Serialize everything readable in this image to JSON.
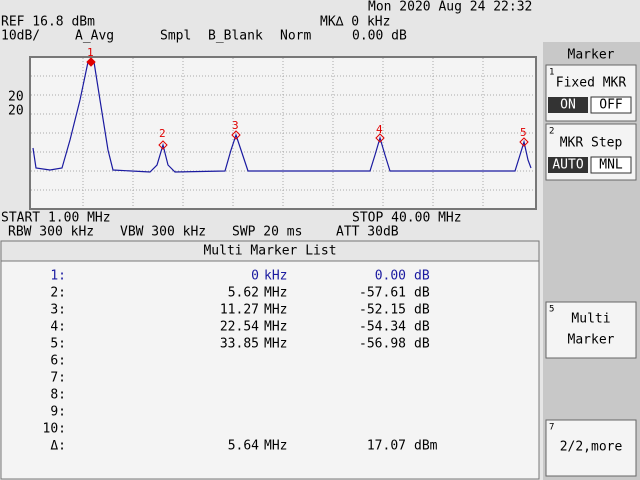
{
  "header": {
    "datetime": "Mon 2020 Aug 24 22:32",
    "ref": "REF 16.8 dBm",
    "marker_delta": "MK∆ 0 kHz",
    "scale": "10dB/",
    "detector": "A_Avg",
    "sample": "Smpl",
    "blank": "B_Blank",
    "mode": "Norm",
    "delta_level": "0.00 dB"
  },
  "plot": {
    "scale_labels": [
      "20",
      "20"
    ],
    "marker_labels": [
      "1",
      "2",
      "3",
      "4",
      "5"
    ]
  },
  "footer": {
    "start": "START 1.00 MHz",
    "stop": "STOP 40.00 MHz",
    "rbw": "RBW 300 kHz",
    "vbw": "VBW 300 kHz",
    "swp": "SWP 20 ms",
    "att": "ATT 30dB"
  },
  "marker_list": {
    "title": "Multi Marker List",
    "rows": [
      [
        "1:",
        "0",
        "kHz",
        "0.00",
        "dB"
      ],
      [
        "2:",
        "5.62",
        "MHz",
        "-57.61",
        "dB"
      ],
      [
        "3:",
        "11.27",
        "MHz",
        "-52.15",
        "dB"
      ],
      [
        "4:",
        "22.54",
        "MHz",
        "-54.34",
        "dB"
      ],
      [
        "5:",
        "33.85",
        "MHz",
        "-56.98",
        "dB"
      ],
      [
        "6:"
      ],
      [
        "7:"
      ],
      [
        "8:"
      ],
      [
        "9:"
      ],
      [
        "10:"
      ],
      [
        "Δ:",
        "5.64",
        "MHz",
        "17.07",
        "dBm"
      ]
    ]
  },
  "softkeys": {
    "title": "Marker",
    "keys": [
      {
        "number": "1",
        "label": "Fixed MKR",
        "options": [
          "ON",
          "OFF"
        ]
      },
      {
        "number": "2",
        "label": "MKR Step",
        "options": [
          "AUTO",
          "MNL"
        ]
      },
      {
        "number": "5",
        "label_lines": [
          "Multi",
          "Marker"
        ]
      },
      {
        "number": "7",
        "label": "2/2,more"
      }
    ]
  }
}
